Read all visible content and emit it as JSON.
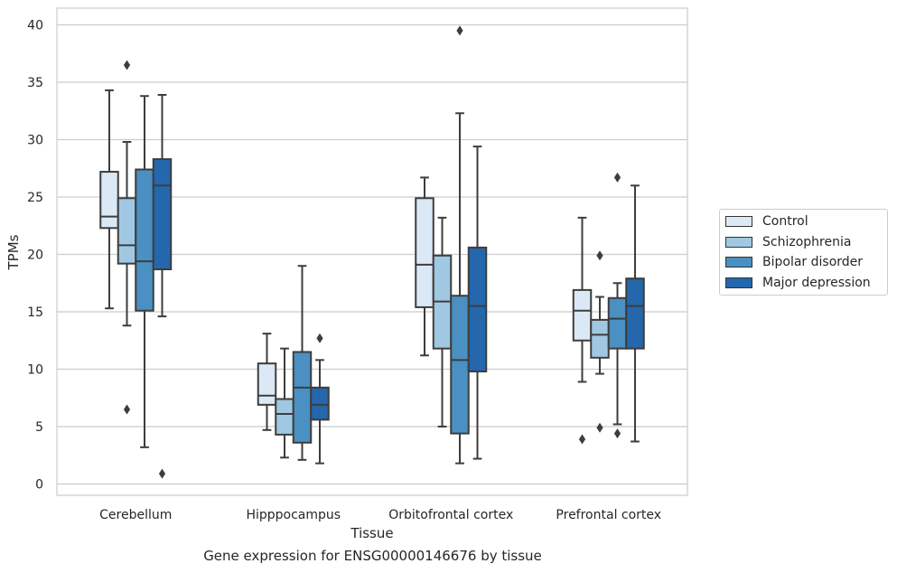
{
  "chart_data": {
    "type": "box",
    "title": "",
    "caption": "Gene expression for ENSG00000146676 by tissue",
    "xlabel": "Tissue",
    "ylabel": "TPMs",
    "ylim": [
      -1,
      41.5
    ],
    "yticks": [
      0,
      5,
      10,
      15,
      20,
      25,
      30,
      35,
      40
    ],
    "grid": "horizontal",
    "legend_position": "right",
    "categories": [
      "Cerebellum",
      "Hipppocampus",
      "Orbitofrontal cortex",
      "Prefrontal cortex"
    ],
    "series": [
      {
        "name": "Control",
        "color": "#dbe9f6",
        "boxes": [
          {
            "whisker_low": 15.3,
            "q1": 22.3,
            "median": 23.3,
            "q3": 27.2,
            "whisker_high": 34.3,
            "outliers": []
          },
          {
            "whisker_low": 4.7,
            "q1": 6.9,
            "median": 7.7,
            "q3": 10.5,
            "whisker_high": 13.1,
            "outliers": []
          },
          {
            "whisker_low": 11.2,
            "q1": 15.4,
            "median": 19.1,
            "q3": 24.9,
            "whisker_high": 26.7,
            "outliers": []
          },
          {
            "whisker_low": 8.9,
            "q1": 12.5,
            "median": 15.1,
            "q3": 16.9,
            "whisker_high": 23.2,
            "outliers": [
              3.9
            ]
          }
        ]
      },
      {
        "name": "Schizophrenia",
        "color": "#a0c8e2",
        "boxes": [
          {
            "whisker_low": 13.8,
            "q1": 19.2,
            "median": 20.8,
            "q3": 24.9,
            "whisker_high": 29.8,
            "outliers": [
              36.5,
              6.5
            ]
          },
          {
            "whisker_low": 2.3,
            "q1": 4.3,
            "median": 6.1,
            "q3": 7.4,
            "whisker_high": 11.8,
            "outliers": []
          },
          {
            "whisker_low": 5.0,
            "q1": 11.8,
            "median": 15.9,
            "q3": 19.9,
            "whisker_high": 23.2,
            "outliers": []
          },
          {
            "whisker_low": 9.6,
            "q1": 11.0,
            "median": 13.0,
            "q3": 14.3,
            "whisker_high": 16.3,
            "outliers": [
              19.9,
              4.9
            ]
          }
        ]
      },
      {
        "name": "Bipolar disorder",
        "color": "#4a90c2",
        "boxes": [
          {
            "whisker_low": 3.2,
            "q1": 15.1,
            "median": 19.4,
            "q3": 27.4,
            "whisker_high": 33.8,
            "outliers": []
          },
          {
            "whisker_low": 2.1,
            "q1": 3.6,
            "median": 8.4,
            "q3": 11.5,
            "whisker_high": 19.0,
            "outliers": []
          },
          {
            "whisker_low": 1.8,
            "q1": 4.4,
            "median": 10.8,
            "q3": 16.4,
            "whisker_high": 32.3,
            "outliers": [
              39.5
            ]
          },
          {
            "whisker_low": 5.2,
            "q1": 11.8,
            "median": 14.4,
            "q3": 16.2,
            "whisker_high": 17.5,
            "outliers": [
              26.7,
              4.4
            ]
          }
        ]
      },
      {
        "name": "Major depression",
        "color": "#2467ad",
        "boxes": [
          {
            "whisker_low": 14.6,
            "q1": 18.7,
            "median": 26.0,
            "q3": 28.3,
            "whisker_high": 33.9,
            "outliers": [
              0.9
            ]
          },
          {
            "whisker_low": 1.8,
            "q1": 5.6,
            "median": 6.9,
            "q3": 8.4,
            "whisker_high": 10.8,
            "outliers": [
              12.7
            ]
          },
          {
            "whisker_low": 2.2,
            "q1": 9.8,
            "median": 15.5,
            "q3": 20.6,
            "whisker_high": 29.4,
            "outliers": []
          },
          {
            "whisker_low": 3.7,
            "q1": 11.8,
            "median": 15.5,
            "q3": 17.9,
            "whisker_high": 26.0,
            "outliers": []
          }
        ]
      }
    ]
  }
}
